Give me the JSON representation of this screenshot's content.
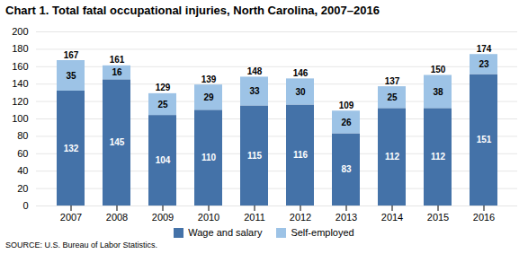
{
  "chart_data": {
    "type": "bar",
    "title": "Chart 1. Total fatal occupational injuries, North Carolina, 2007–2016",
    "categories": [
      "2007",
      "2008",
      "2009",
      "2010",
      "2011",
      "2012",
      "2013",
      "2014",
      "2015",
      "2016"
    ],
    "series": [
      {
        "name": "Wage and salary",
        "color": "#4472A8",
        "values": [
          132,
          145,
          104,
          110,
          115,
          116,
          83,
          112,
          112,
          151
        ]
      },
      {
        "name": "Self-employed",
        "color": "#9DC3E6",
        "values": [
          35,
          16,
          25,
          29,
          33,
          30,
          26,
          25,
          38,
          23
        ]
      }
    ],
    "totals": [
      167,
      161,
      129,
      139,
      148,
      146,
      109,
      137,
      150,
      174
    ],
    "stacked": true,
    "data_labels": true,
    "ylim": [
      0,
      200
    ],
    "yticks": [
      0,
      20,
      40,
      60,
      80,
      100,
      120,
      140,
      160,
      180,
      200
    ],
    "grid": true,
    "legend": "bottom",
    "source": "SOURCE: U.S. Bureau of Labor Statistics."
  }
}
